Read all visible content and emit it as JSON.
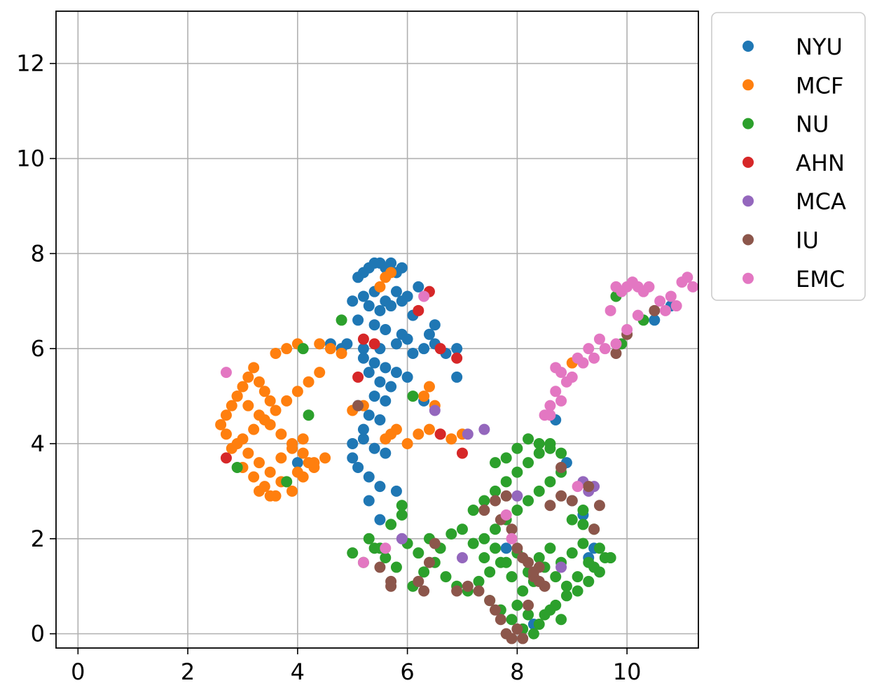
{
  "chart_data": {
    "type": "scatter",
    "title": "",
    "xlabel": "",
    "ylabel": "",
    "xlim": [
      -0.4,
      11.3
    ],
    "ylim": [
      -0.3,
      13.1
    ],
    "xticks": [
      0,
      2,
      4,
      6,
      8,
      10
    ],
    "yticks": [
      0,
      2,
      4,
      6,
      8,
      10,
      12
    ],
    "grid": true,
    "legend_position": "outside-top-right",
    "series": [
      {
        "name": "NYU",
        "color": "#1f77b4",
        "x": [
          5.1,
          5.2,
          5.3,
          5.4,
          5.5,
          5.6,
          5.7,
          5.8,
          5.9,
          5.0,
          5.2,
          5.4,
          5.6,
          5.8,
          6.0,
          6.2,
          5.3,
          5.5,
          5.7,
          5.9,
          6.1,
          5.1,
          5.4,
          5.6,
          5.9,
          6.0,
          4.9,
          5.2,
          5.5,
          5.8,
          6.1,
          6.3,
          6.5,
          6.7,
          6.9,
          4.6,
          4.8,
          5.2,
          5.4,
          5.6,
          5.8,
          6.0,
          5.3,
          5.5,
          5.7,
          5.4,
          5.6,
          5.1,
          5.3,
          5.5,
          5.2,
          5.0,
          5.2,
          5.4,
          5.6,
          5.0,
          5.1,
          5.3,
          5.5,
          5.8,
          6.4,
          6.5,
          6.9,
          8.7,
          8.9,
          9.0,
          9.2,
          9.3,
          9.4,
          10.5,
          10.8,
          7.8,
          8.3,
          4.0,
          5.3,
          5.5,
          6.3
        ],
        "y": [
          7.5,
          7.6,
          7.7,
          7.8,
          7.8,
          7.7,
          7.8,
          7.6,
          7.7,
          7.0,
          7.1,
          7.2,
          7.0,
          7.2,
          7.1,
          7.3,
          6.9,
          6.8,
          6.9,
          7.0,
          6.7,
          6.6,
          6.5,
          6.4,
          6.3,
          6.2,
          6.1,
          6.0,
          6.0,
          6.1,
          5.9,
          6.0,
          6.1,
          5.9,
          6.0,
          6.1,
          6.0,
          5.8,
          5.7,
          5.6,
          5.5,
          5.4,
          5.5,
          5.3,
          5.2,
          5.0,
          4.9,
          4.8,
          4.6,
          4.5,
          4.3,
          4.0,
          4.1,
          3.9,
          3.8,
          3.7,
          3.5,
          3.3,
          3.1,
          3.0,
          6.3,
          6.5,
          5.4,
          4.5,
          3.6,
          2.8,
          2.5,
          1.6,
          1.8,
          6.6,
          6.9,
          1.8,
          0.2,
          3.6,
          2.8,
          2.4,
          4.9
        ]
      },
      {
        "name": "MCF",
        "color": "#ff7f0e",
        "x": [
          2.6,
          2.7,
          2.8,
          2.9,
          3.0,
          3.1,
          3.2,
          3.3,
          3.4,
          3.5,
          2.7,
          2.9,
          3.1,
          3.3,
          3.5,
          3.7,
          3.9,
          4.1,
          4.3,
          4.5,
          2.8,
          3.0,
          3.2,
          3.4,
          3.6,
          3.8,
          4.0,
          4.2,
          4.4,
          2.9,
          3.1,
          3.3,
          3.5,
          3.7,
          3.9,
          4.1,
          4.3,
          3.0,
          3.2,
          3.4,
          3.6,
          3.8,
          4.0,
          4.2,
          3.3,
          3.5,
          3.7,
          3.9,
          4.1,
          3.6,
          3.8,
          4.0,
          4.4,
          4.6,
          4.8,
          5.0,
          5.2,
          5.6,
          5.7,
          5.8,
          6.0,
          6.2,
          6.4,
          6.6,
          6.8,
          7.0,
          5.5,
          5.6,
          5.7,
          6.3,
          6.4,
          6.5,
          9.0
        ],
        "y": [
          4.4,
          4.6,
          4.8,
          5.0,
          5.2,
          5.4,
          5.6,
          5.3,
          5.1,
          4.9,
          4.2,
          4.0,
          3.8,
          3.6,
          3.4,
          3.2,
          3.0,
          3.3,
          3.5,
          3.7,
          3.9,
          4.1,
          4.3,
          4.5,
          4.7,
          4.9,
          5.1,
          5.3,
          5.5,
          5.0,
          4.8,
          4.6,
          4.4,
          4.2,
          4.0,
          3.8,
          3.6,
          3.5,
          3.3,
          3.1,
          2.9,
          3.2,
          3.4,
          3.6,
          3.0,
          2.9,
          3.7,
          3.9,
          4.1,
          5.9,
          6.0,
          6.1,
          6.1,
          6.0,
          5.9,
          4.7,
          4.8,
          4.1,
          4.2,
          4.3,
          4.0,
          4.2,
          4.3,
          4.2,
          4.1,
          4.2,
          7.3,
          7.5,
          7.6,
          5.0,
          5.2,
          4.8,
          5.7
        ]
      },
      {
        "name": "NU",
        "color": "#2ca02c",
        "x": [
          5.0,
          5.2,
          5.4,
          5.6,
          5.8,
          6.0,
          6.2,
          6.4,
          6.6,
          6.8,
          7.0,
          7.2,
          7.4,
          7.6,
          7.8,
          8.0,
          8.2,
          8.4,
          8.6,
          8.8,
          9.0,
          9.2,
          9.4,
          9.6,
          5.3,
          5.5,
          5.7,
          5.9,
          6.1,
          6.3,
          6.5,
          6.7,
          6.9,
          7.1,
          7.3,
          7.5,
          7.7,
          7.9,
          8.1,
          8.3,
          8.5,
          8.7,
          8.9,
          9.1,
          9.3,
          9.5,
          9.7,
          7.4,
          7.6,
          7.8,
          8.0,
          8.2,
          8.4,
          8.6,
          8.8,
          9.0,
          9.2,
          9.4,
          7.2,
          7.4,
          7.6,
          7.8,
          8.0,
          8.2,
          8.4,
          8.6,
          8.8,
          8.0,
          8.2,
          8.4,
          8.6,
          8.8,
          7.5,
          7.7,
          7.9,
          8.1,
          8.3,
          8.5,
          8.7,
          8.9,
          9.1,
          9.3,
          9.5,
          9.7,
          7.6,
          7.8,
          8.0,
          8.2,
          8.4,
          8.6,
          2.9,
          3.8,
          4.2,
          4.1,
          4.8,
          6.1,
          9.8,
          10.3,
          9.9,
          9.2,
          5.9
        ],
        "y": [
          1.7,
          1.5,
          1.8,
          1.6,
          1.4,
          1.9,
          1.7,
          2.0,
          1.8,
          2.1,
          2.2,
          1.9,
          1.6,
          1.8,
          1.5,
          1.7,
          1.3,
          1.6,
          1.8,
          1.5,
          1.7,
          1.9,
          1.4,
          1.6,
          2.0,
          1.8,
          2.3,
          2.5,
          1.0,
          1.3,
          1.5,
          1.2,
          1.0,
          0.9,
          1.1,
          1.3,
          1.5,
          1.2,
          0.9,
          1.1,
          1.4,
          1.2,
          1.0,
          1.2,
          1.5,
          1.8,
          1.6,
          2.0,
          2.2,
          2.4,
          2.6,
          2.8,
          3.0,
          3.2,
          3.4,
          2.4,
          2.6,
          2.2,
          2.6,
          2.8,
          3.0,
          3.2,
          3.4,
          3.6,
          3.8,
          4.0,
          3.8,
          0.6,
          0.4,
          0.2,
          0.5,
          0.3,
          0.7,
          0.5,
          0.3,
          0.1,
          0.0,
          0.4,
          0.6,
          0.8,
          0.9,
          1.1,
          1.3,
          1.6,
          3.6,
          3.7,
          3.9,
          4.1,
          4.0,
          3.9,
          3.5,
          3.2,
          4.6,
          6.0,
          6.6,
          5.0,
          7.1,
          6.6,
          6.1,
          2.3,
          2.7
        ],
        "note": ""
      },
      {
        "name": "AHN",
        "color": "#d62728",
        "x": [
          5.2,
          5.4,
          6.2,
          6.4,
          6.6,
          6.9,
          7.0,
          5.1,
          2.7,
          6.6
        ],
        "y": [
          6.2,
          6.1,
          6.8,
          7.2,
          6.0,
          5.8,
          3.8,
          5.4,
          3.7,
          4.2
        ]
      },
      {
        "name": "MCA",
        "color": "#9467bd",
        "x": [
          6.5,
          7.1,
          7.4,
          8.0,
          8.8,
          9.2,
          9.3,
          9.4,
          7.0,
          5.9
        ],
        "y": [
          4.7,
          4.2,
          4.3,
          2.9,
          1.4,
          3.2,
          3.0,
          3.1,
          1.6,
          2.0
        ]
      },
      {
        "name": "IU",
        "color": "#8c564b",
        "x": [
          5.1,
          5.5,
          5.7,
          6.2,
          6.4,
          6.5,
          6.9,
          7.1,
          7.3,
          7.5,
          7.6,
          7.7,
          7.8,
          7.9,
          8.0,
          8.1,
          8.2,
          8.3,
          8.4,
          8.5,
          7.4,
          7.6,
          7.8,
          8.0,
          8.2,
          8.4,
          7.7,
          7.9,
          8.1,
          8.3,
          8.6,
          8.8,
          9.0,
          9.4,
          9.5,
          9.3,
          8.8,
          10.0,
          10.5,
          9.8,
          5.7,
          6.3
        ],
        "y": [
          4.8,
          1.4,
          1.1,
          1.1,
          1.5,
          1.9,
          0.9,
          1.0,
          0.9,
          0.7,
          0.5,
          0.3,
          0.0,
          -0.1,
          0.1,
          -0.1,
          0.6,
          1.2,
          1.4,
          1.0,
          2.6,
          2.8,
          2.9,
          1.8,
          1.5,
          1.1,
          2.4,
          2.2,
          1.6,
          1.3,
          2.7,
          2.9,
          2.8,
          2.2,
          2.7,
          3.1,
          3.5,
          6.3,
          6.8,
          5.9,
          1.0,
          0.9
        ]
      },
      {
        "name": "EMC",
        "color": "#e377c2",
        "x": [
          9.8,
          9.9,
          10.0,
          10.1,
          10.2,
          10.3,
          10.4,
          10.6,
          10.8,
          11.0,
          11.1,
          11.2,
          10.7,
          10.9,
          9.7,
          9.5,
          9.3,
          9.1,
          8.9,
          8.7,
          8.6,
          8.5,
          8.8,
          9.0,
          9.2,
          9.4,
          9.6,
          10.0,
          10.2,
          8.7,
          8.8,
          2.7,
          5.6,
          6.3,
          7.8,
          7.9,
          9.1,
          5.2,
          8.6,
          9.8
        ],
        "y": [
          7.3,
          7.2,
          7.3,
          7.4,
          7.3,
          7.2,
          7.3,
          7.0,
          7.1,
          7.4,
          7.5,
          7.3,
          6.8,
          6.9,
          6.8,
          6.2,
          6.0,
          5.8,
          5.3,
          5.1,
          4.8,
          4.6,
          4.9,
          5.4,
          5.7,
          5.8,
          6.0,
          6.4,
          6.7,
          5.6,
          5.5,
          5.5,
          1.8,
          7.1,
          2.5,
          2.0,
          3.1,
          1.5,
          4.6,
          6.1
        ]
      }
    ]
  }
}
